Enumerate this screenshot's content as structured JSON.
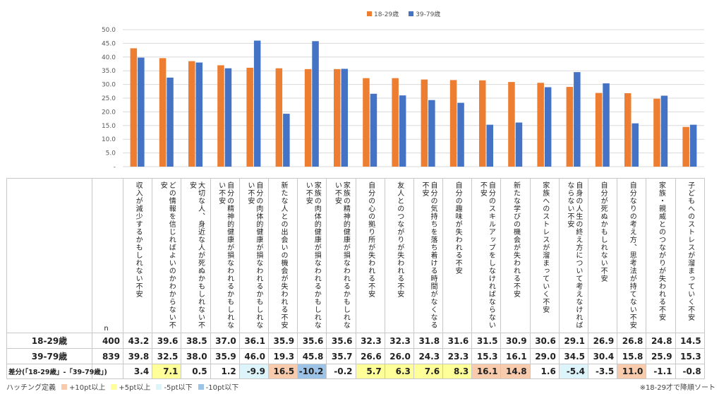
{
  "legend": [
    {
      "name": "18-29歳",
      "color": "#ED7D31"
    },
    {
      "name": "39-79歳",
      "color": "#4472C4"
    }
  ],
  "table": {
    "n_label": "n",
    "rows": [
      {
        "label": "18-29歳",
        "n": "400",
        "values": [
          "43.2",
          "39.6",
          "38.5",
          "37.0",
          "36.1",
          "35.9",
          "35.6",
          "35.6",
          "32.3",
          "32.3",
          "31.8",
          "31.6",
          "31.5",
          "30.9",
          "30.6",
          "29.1",
          "26.9",
          "26.8",
          "24.8",
          "14.5"
        ]
      },
      {
        "label": "39-79歳",
        "n": "839",
        "values": [
          "39.8",
          "32.5",
          "38.0",
          "35.9",
          "46.0",
          "19.3",
          "45.8",
          "35.7",
          "26.6",
          "26.0",
          "24.3",
          "23.3",
          "15.3",
          "16.1",
          "29.0",
          "34.5",
          "30.4",
          "15.8",
          "25.9",
          "15.3"
        ]
      },
      {
        "label": "差分(「18-29歳」-「39-79歳」)",
        "n": "",
        "values": [
          "3.4",
          "7.1",
          "0.5",
          "1.2",
          "-9.9",
          "16.5",
          "-10.2",
          "-0.2",
          "5.7",
          "6.3",
          "7.6",
          "8.3",
          "16.1",
          "14.8",
          "1.6",
          "-5.4",
          "-3.5",
          "11.0",
          "-1.1",
          "-0.8"
        ]
      }
    ]
  },
  "highlight": {
    "label": "ハッチング定義",
    "items": [
      {
        "label": "+10pt以上",
        "color": "#F8CBAD"
      },
      {
        "label": "+5pt以上",
        "color": "#FFFF99"
      },
      {
        "label": "-5pt以下",
        "color": "#DDF4FB"
      },
      {
        "label": "-10pt以下",
        "color": "#9DC3E6"
      }
    ]
  },
  "note": "※18-29才で降順ソート",
  "chart_data": {
    "type": "bar",
    "categories": [
      "収入が減少するかもしれない不安",
      "どの情報を信じればよいのかわからない不安",
      "大切な人、身近な人が死ぬかもしれない不安",
      "自分の精神的健康が損なわれるかもしれない不安",
      "自分の肉体的健康が損なわれるかもしれない不安",
      "新たな人との出会いの機会が失われる不安",
      "家族の肉体的健康が損なわれるかもしれない不安",
      "家族の精神的健康が損なわれるかもしれない不安",
      "自分の心の拠り所が失われる不安",
      "友人とのつながりが失われる不安",
      "自分の気持ちを落ち着ける時間がなくなる不安",
      "自分の趣味が失われる不安",
      "自分のスキルアップをしなければならない不安",
      "新たな学びの機会が失われる不安",
      "家族へのストレスが溜まっていく不安",
      "自身の人生の終え方について考えなければならない不安",
      "自分が死ぬかもしれない不安",
      "自分なりの考え方、思考法が持てない不安",
      "家族・親威とのつながりが失われる不安",
      "子どもへのストレスが溜まっていく不安"
    ],
    "series": [
      {
        "name": "18-29歳",
        "values": [
          43.2,
          39.6,
          38.5,
          37.0,
          36.1,
          35.9,
          35.6,
          35.6,
          32.3,
          32.3,
          31.8,
          31.6,
          31.5,
          30.9,
          30.6,
          29.1,
          26.9,
          26.8,
          24.8,
          14.5
        ]
      },
      {
        "name": "39-79歳",
        "values": [
          39.8,
          32.5,
          38.0,
          35.9,
          46.0,
          19.3,
          45.8,
          35.7,
          26.6,
          26.0,
          24.3,
          23.3,
          15.3,
          16.1,
          29.0,
          34.5,
          30.4,
          15.8,
          25.9,
          15.3
        ]
      }
    ],
    "yticks": [
      "50.0",
      "45.0",
      "40.0",
      "35.0",
      "30.0",
      "25.0",
      "20.0",
      "15.0",
      "10.0",
      "5.0",
      "-"
    ],
    "ylim": [
      0,
      50
    ],
    "grid": true,
    "legend_position": "top"
  }
}
